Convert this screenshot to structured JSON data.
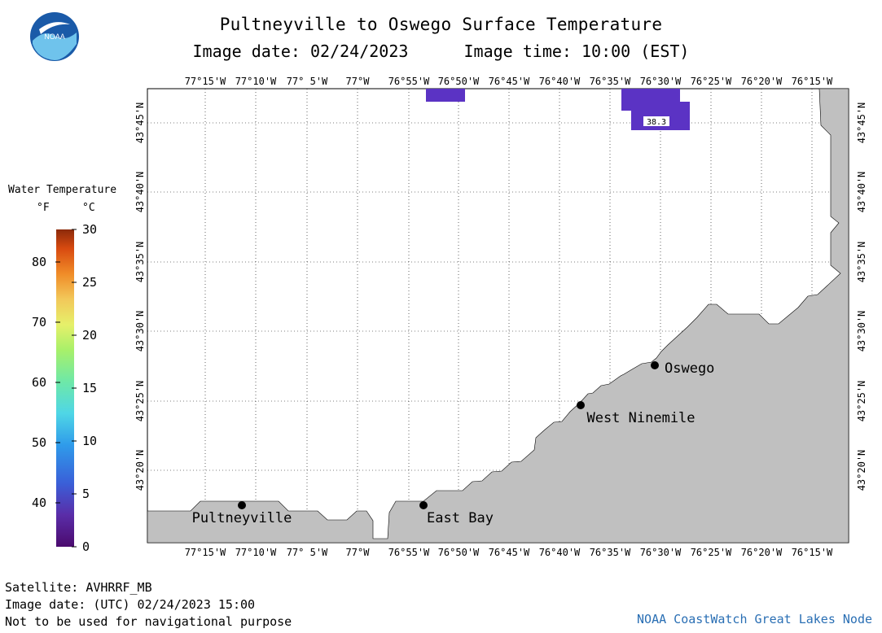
{
  "title": "Pultneyville to Oswego Surface Temperature",
  "image_date_label": "Image date: 02/24/2023",
  "image_time_label": "Image time: 10:00 (EST)",
  "logo_text": "NOAA",
  "legend": {
    "title": "Water Temperature",
    "unit_f": "°F",
    "unit_c": "°C",
    "fahrenheit_ticks": [
      "80",
      "70",
      "60",
      "50",
      "40"
    ],
    "celsius_ticks": [
      "30",
      "25",
      "20",
      "15",
      "10",
      "5",
      "0"
    ],
    "colors": [
      "#4b0a6e",
      "#5a2da8",
      "#3a5fd8",
      "#2f9bea",
      "#4fd6e6",
      "#6ee8a8",
      "#a8f06a",
      "#e6f06a",
      "#f2c85a",
      "#f08c28",
      "#d84a10",
      "#8c2a0a"
    ]
  },
  "map": {
    "lon_labels": [
      "77°15'W",
      "77°10'W",
      "77° 5'W",
      "77°W",
      "76°55'W",
      "76°50'W",
      "76°45'W",
      "76°40'W",
      "76°35'W",
      "76°30'W",
      "76°25'W",
      "76°20'W",
      "76°15'W"
    ],
    "lat_labels": [
      "43°45'N",
      "43°40'N",
      "43°35'N",
      "43°30'N",
      "43°25'N",
      "43°20'N"
    ],
    "places": [
      {
        "name": "Pultneyville"
      },
      {
        "name": "East Bay"
      },
      {
        "name": "West Ninemile"
      },
      {
        "name": "Oswego"
      }
    ],
    "temperature_label": "38.3",
    "land_color": "#c0c0c0",
    "water_patch_color": "#5b33c4"
  },
  "footer": {
    "satellite": "Satellite: AVHRRF_MB",
    "image_date_utc": "Image date: (UTC) 02/24/2023  15:00",
    "disclaimer": "Not to be used for navigational purpose",
    "credit": "NOAA CoastWatch Great Lakes Node"
  }
}
